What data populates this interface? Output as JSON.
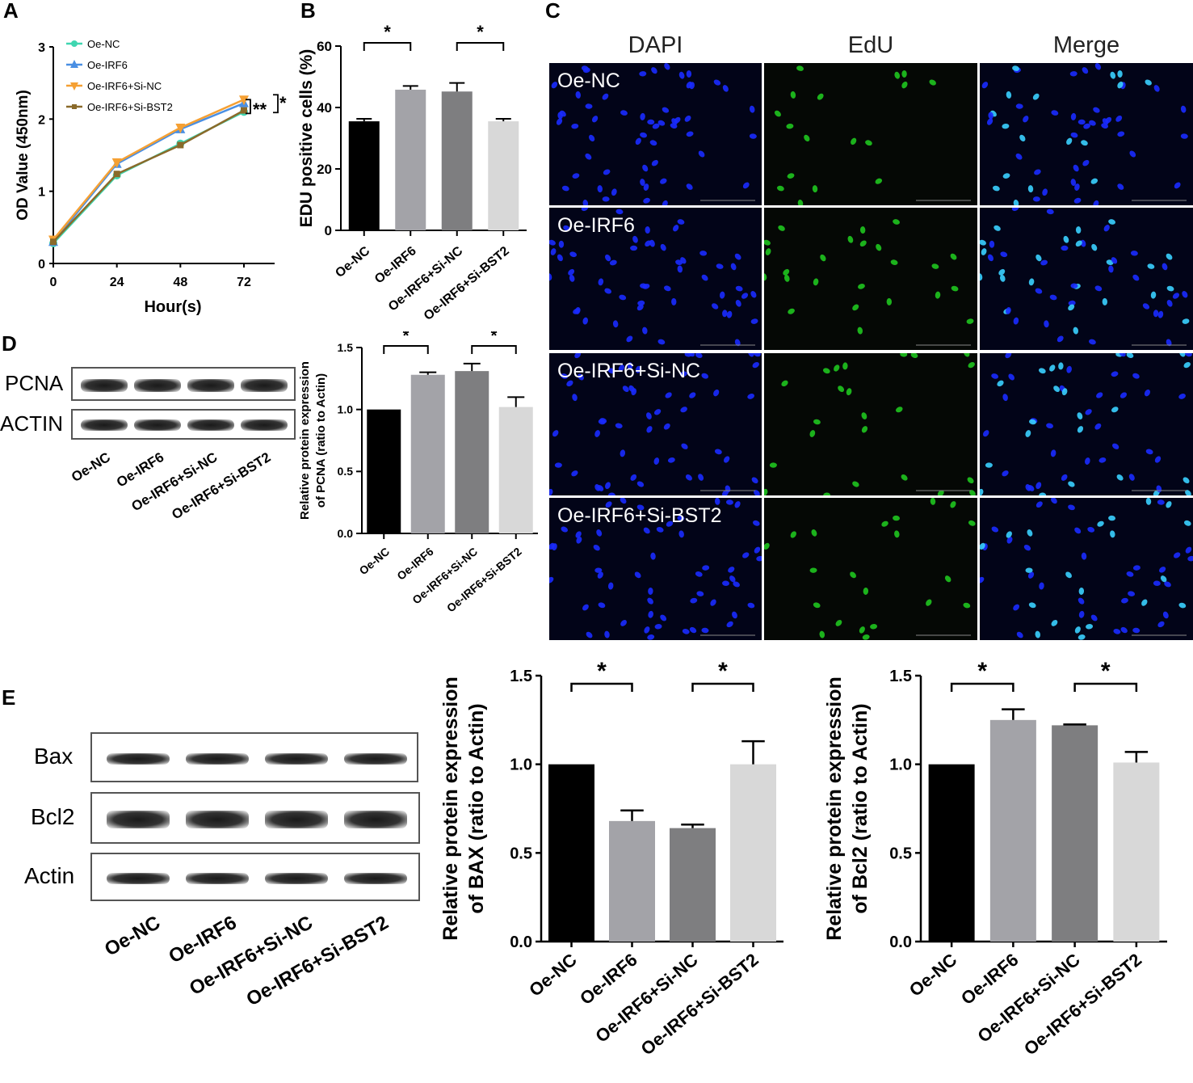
{
  "panels": {
    "A": "A",
    "B": "B",
    "C": "C",
    "D": "D",
    "E": "E"
  },
  "colors": {
    "black": "#000000",
    "gray_mid": "#a3a3a8",
    "gray_dark": "#7e7e80",
    "gray_light": "#d8d8d8",
    "nc": "#3fd6b0",
    "irf6": "#4a8fe3",
    "irf6_sinc": "#f5a033",
    "irf6_sibst2": "#8a6a2a",
    "dapi": "#1a2bff",
    "edu": "#22dd22"
  },
  "chart_data": [
    {
      "id": "A",
      "type": "line",
      "xlabel": "Hour(s)",
      "ylabel": "OD Value (450nm)",
      "x": [
        0,
        24,
        48,
        72
      ],
      "xticks": [
        "0",
        "24",
        "48",
        "72"
      ],
      "yticks": [
        "0",
        "1",
        "2",
        "3"
      ],
      "ylim": [
        0,
        3
      ],
      "series": [
        {
          "name": "Oe-NC",
          "values": [
            0.28,
            1.22,
            1.66,
            2.1
          ]
        },
        {
          "name": "Oe-IRF6",
          "values": [
            0.3,
            1.38,
            1.86,
            2.22
          ]
        },
        {
          "name": "Oe-IRF6+Si-NC",
          "values": [
            0.33,
            1.4,
            1.88,
            2.27
          ]
        },
        {
          "name": "Oe-IRF6+Si-BST2",
          "values": [
            0.3,
            1.24,
            1.64,
            2.12
          ]
        }
      ],
      "legend": "top-left",
      "annotations": [
        "**",
        "*"
      ]
    },
    {
      "id": "B",
      "type": "bar",
      "ylabel": "EDU positive cells (%)",
      "categories": [
        "Oe-NC",
        "Oe-IRF6",
        "Oe-IRF6+Si-NC",
        "Oe-IRF6+Si-BST2"
      ],
      "values": [
        35.5,
        45.8,
        45.2,
        35.5
      ],
      "errors": [
        0.8,
        1.2,
        2.8,
        0.8
      ],
      "ylim": [
        0,
        60
      ],
      "yticks": [
        "0",
        "20",
        "40",
        "60"
      ],
      "significance": [
        "*",
        "*"
      ]
    },
    {
      "id": "D",
      "type": "bar",
      "ylabel_line1": "Relative protein expression",
      "ylabel_line2": "of PCNA (ratio to Actin)",
      "categories": [
        "Oe-NC",
        "Oe-IRF6",
        "Oe-IRF6+Si-NC",
        "Oe-IRF6+Si-BST2"
      ],
      "values": [
        1.0,
        1.28,
        1.31,
        1.02
      ],
      "errors": [
        0.0,
        0.02,
        0.06,
        0.08
      ],
      "ylim": [
        0,
        1.5
      ],
      "yticks": [
        "0.0",
        "0.5",
        "1.0",
        "1.5"
      ],
      "significance": [
        "*",
        "*"
      ]
    },
    {
      "id": "E-BAX",
      "type": "bar",
      "ylabel_line1": "Relative protein expression",
      "ylabel_line2": "of BAX (ratio to Actin)",
      "categories": [
        "Oe-NC",
        "Oe-IRF6",
        "Oe-IRF6+Si-NC",
        "Oe-IRF6+Si-BST2"
      ],
      "values": [
        1.0,
        0.68,
        0.64,
        1.0
      ],
      "errors": [
        0.0,
        0.06,
        0.02,
        0.13
      ],
      "ylim": [
        0,
        1.5
      ],
      "yticks": [
        "0.0",
        "0.5",
        "1.0",
        "1.5"
      ],
      "significance": [
        "*",
        "*"
      ]
    },
    {
      "id": "E-Bcl2",
      "type": "bar",
      "ylabel_line1": "Relative protein expression",
      "ylabel_line2": "of Bcl2 (ratio to Actin)",
      "categories": [
        "Oe-NC",
        "Oe-IRF6",
        "Oe-IRF6+Si-NC",
        "Oe-IRF6+Si-BST2"
      ],
      "values": [
        1.0,
        1.25,
        1.22,
        1.01
      ],
      "errors": [
        0.0,
        0.06,
        0.005,
        0.06
      ],
      "ylim": [
        0,
        1.5
      ],
      "yticks": [
        "0.0",
        "0.5",
        "1.0",
        "1.5"
      ],
      "significance": [
        "*",
        "*"
      ]
    }
  ],
  "fluorescence": {
    "columns": [
      "DAPI",
      "EdU",
      "Merge"
    ],
    "rows": [
      "Oe-NC",
      "Oe-IRF6",
      "Oe-IRF6+Si-NC",
      "Oe-IRF6+Si-BST2"
    ]
  },
  "blot_D": {
    "bands": [
      "PCNA",
      "ACTIN"
    ],
    "lanes": [
      "Oe-NC",
      "Oe-IRF6",
      "Oe-IRF6+Si-NC",
      "Oe-IRF6+Si-BST2"
    ]
  },
  "blot_E": {
    "bands": [
      "Bax",
      "Bcl2",
      "Actin"
    ],
    "lanes": [
      "Oe-NC",
      "Oe-IRF6",
      "Oe-IRF6+Si-NC",
      "Oe-IRF6+Si-BST2"
    ]
  }
}
